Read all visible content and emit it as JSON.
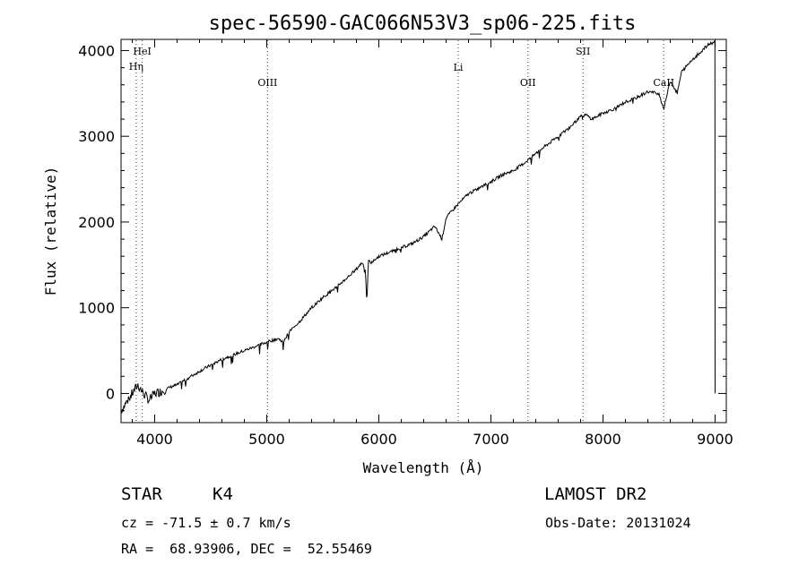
{
  "chart_data": {
    "type": "line",
    "title": "spec-56590-GAC066N53V3_sp06-225.fits",
    "xlabel": "Wavelength (Å)",
    "ylabel": "Flux (relative)",
    "xlim": [
      3700,
      9100
    ],
    "ylim": [
      -340,
      4130
    ],
    "x_ticks": [
      4000,
      5000,
      6000,
      7000,
      8000,
      9000
    ],
    "x_tick_labels": [
      "4000",
      "5000",
      "6000",
      "7000",
      "8000",
      "9000"
    ],
    "y_ticks": [
      0,
      1000,
      2000,
      3000,
      4000
    ],
    "y_tick_labels": [
      "0",
      "1000",
      "2000",
      "3000",
      "4000"
    ],
    "grid": false,
    "line_color": "#000000",
    "marker_color": "#dd0000",
    "spectral_lines": [
      {
        "label": "HeI",
        "x": 3889
      },
      {
        "label": "Hη",
        "x": 3835
      },
      {
        "label": "OIII",
        "x": 5007
      },
      {
        "label": "Li",
        "x": 6708
      },
      {
        "label": "OII",
        "x": 7330
      },
      {
        "label": "SII",
        "x": 7822
      },
      {
        "label": "CaII",
        "x": 8542
      }
    ],
    "series": [
      {
        "x": [
          3700,
          3750,
          3800,
          3850,
          3900,
          3950,
          4000,
          4050,
          4100,
          4150,
          4200,
          4300,
          4400,
          4500,
          4600,
          4700,
          4800,
          4900,
          5000,
          5100,
          5150,
          5200,
          5300,
          5400,
          5500,
          5600,
          5700,
          5800,
          5850,
          5880,
          5893,
          5905,
          5930,
          6000,
          6100,
          6200,
          6300,
          6400,
          6500,
          6563,
          6600,
          6700,
          6800,
          6900,
          7000,
          7100,
          7200,
          7300,
          7400,
          7500,
          7600,
          7700,
          7800,
          7850,
          7900,
          8000,
          8100,
          8200,
          8300,
          8400,
          8498,
          8542,
          8600,
          8662,
          8700,
          8800,
          8900,
          8950,
          9000
        ],
        "y": [
          -200,
          -100,
          0,
          100,
          0,
          -80,
          0,
          20,
          50,
          80,
          100,
          180,
          260,
          330,
          400,
          450,
          500,
          550,
          600,
          640,
          600,
          720,
          850,
          1000,
          1120,
          1220,
          1330,
          1450,
          1530,
          1450,
          1000,
          1550,
          1520,
          1600,
          1650,
          1700,
          1750,
          1830,
          1950,
          1800,
          2050,
          2200,
          2330,
          2400,
          2470,
          2550,
          2600,
          2690,
          2800,
          2900,
          3000,
          3100,
          3230,
          3250,
          3200,
          3270,
          3320,
          3400,
          3450,
          3520,
          3500,
          3320,
          3650,
          3500,
          3750,
          3900,
          4020,
          4080,
          4100
        ]
      }
    ]
  },
  "info": {
    "object_class": "STAR",
    "subclass": "K4",
    "survey": "LAMOST DR2",
    "redshift": "cz = -71.5 ± 0.7 km/s",
    "obs_date": "Obs-Date: 20131024",
    "coords": "RA =  68.93906, DEC =  52.55469"
  }
}
